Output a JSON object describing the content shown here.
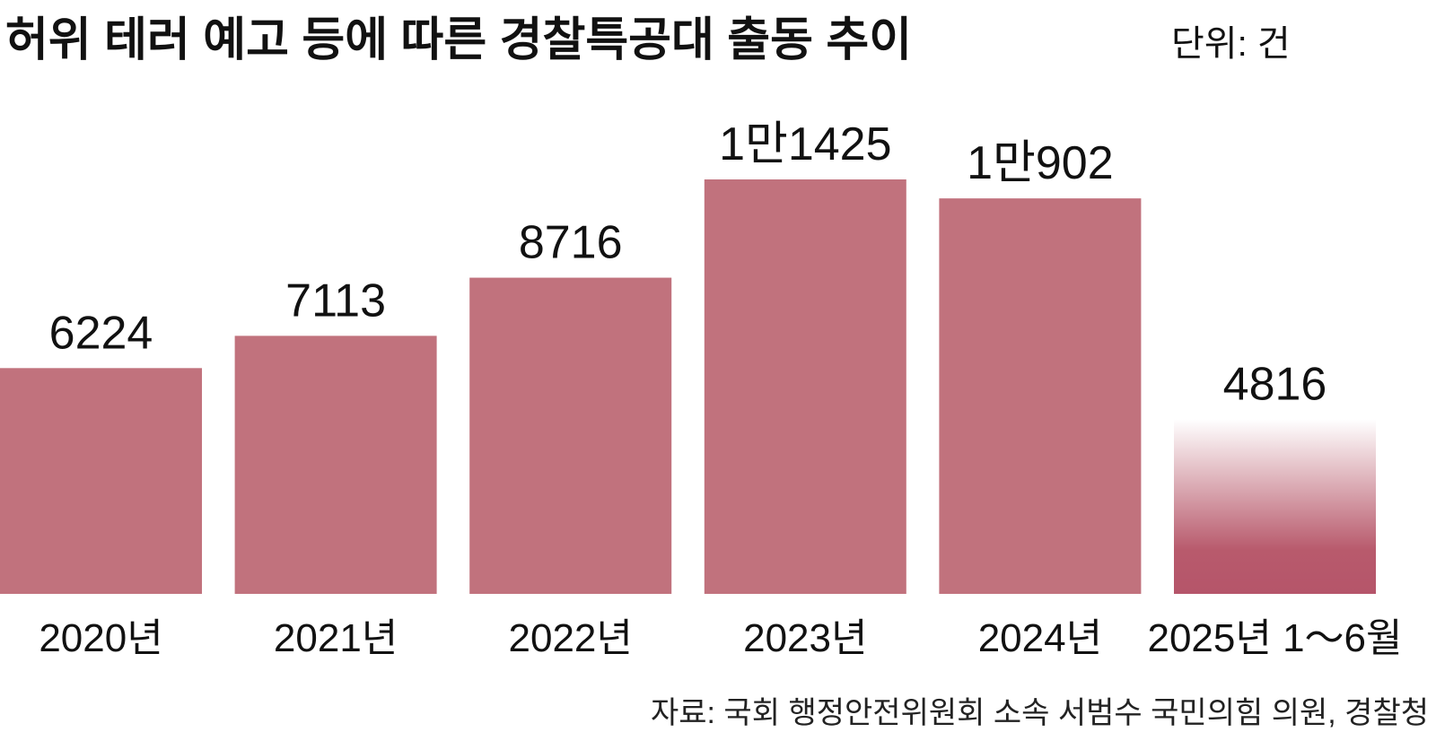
{
  "chart_data": {
    "type": "bar",
    "title": "허위 테러 예고 등에 따른 경찰특공대 출동 추이",
    "unit": "단위: 건",
    "source": "자료: 국회 행정안전위원회 소속 서범수 국민의힘 의원, 경찰청",
    "categories": [
      "2020년",
      "2021년",
      "2022년",
      "2023년",
      "2024년",
      "2025년 1～6월"
    ],
    "values": [
      6224,
      7113,
      8716,
      11425,
      10902,
      4816
    ],
    "value_labels": [
      "6224",
      "7113",
      "8716",
      "1만1425",
      "1만902",
      "4816"
    ],
    "color": "#c1727d"
  }
}
